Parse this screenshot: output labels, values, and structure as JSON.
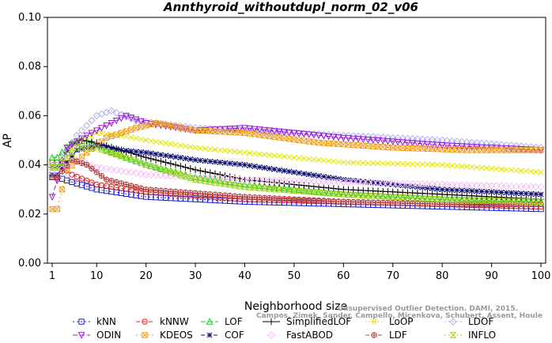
{
  "chart_data": {
    "type": "line",
    "title": "Annthyroid_withoutdupl_norm_02_v06",
    "xlabel": "Neighborhood size",
    "ylabel": "AP",
    "xlim": [
      1,
      100
    ],
    "ylim": [
      0.0,
      0.1
    ],
    "xticks": [
      "1",
      "10",
      "20",
      "30",
      "40",
      "50",
      "60",
      "70",
      "80",
      "90",
      "100"
    ],
    "yticks": [
      "0.00",
      "0.02",
      "0.04",
      "0.06",
      "0.08",
      "0.10"
    ],
    "grid": false,
    "legend_position": "bottom",
    "series": [
      {
        "name": "kNN",
        "color": "#1a1ad6",
        "marker": "square",
        "dash": "2,3",
        "points": [
          [
            2,
            0.035
          ],
          [
            5,
            0.033
          ],
          [
            10,
            0.03
          ],
          [
            20,
            0.027
          ],
          [
            40,
            0.025
          ],
          [
            60,
            0.024
          ],
          [
            80,
            0.023
          ],
          [
            100,
            0.022
          ]
        ]
      },
      {
        "name": "kNNW",
        "color": "#e0201a",
        "marker": "circle",
        "dash": "5,3",
        "points": [
          [
            2,
            0.041
          ],
          [
            5,
            0.036
          ],
          [
            10,
            0.032
          ],
          [
            20,
            0.029
          ],
          [
            40,
            0.026
          ],
          [
            60,
            0.025
          ],
          [
            80,
            0.024
          ],
          [
            100,
            0.023
          ]
        ]
      },
      {
        "name": "LOF",
        "color": "#16cc16",
        "marker": "triangle-up",
        "dash": "6,3",
        "points": [
          [
            2,
            0.043
          ],
          [
            5,
            0.049
          ],
          [
            8,
            0.05
          ],
          [
            12,
            0.046
          ],
          [
            20,
            0.04
          ],
          [
            30,
            0.035
          ],
          [
            40,
            0.032
          ],
          [
            60,
            0.028
          ],
          [
            80,
            0.026
          ],
          [
            100,
            0.025
          ]
        ]
      },
      {
        "name": "SimplifiedLOF",
        "color": "#000000",
        "marker": "plus",
        "dash": "",
        "points": [
          [
            2,
            0.039
          ],
          [
            5,
            0.048
          ],
          [
            7,
            0.05
          ],
          [
            10,
            0.049
          ],
          [
            20,
            0.043
          ],
          [
            30,
            0.038
          ],
          [
            40,
            0.034
          ],
          [
            60,
            0.03
          ],
          [
            80,
            0.028
          ],
          [
            100,
            0.026
          ]
        ]
      },
      {
        "name": "LoOP",
        "color": "#e6e600",
        "marker": "x",
        "dash": "2,2",
        "points": [
          [
            2,
            0.04
          ],
          [
            6,
            0.049
          ],
          [
            10,
            0.053
          ],
          [
            15,
            0.052
          ],
          [
            20,
            0.05
          ],
          [
            30,
            0.047
          ],
          [
            40,
            0.045
          ],
          [
            60,
            0.041
          ],
          [
            80,
            0.04
          ],
          [
            100,
            0.037
          ]
        ]
      },
      {
        "name": "LDOF",
        "color": "#b0b0f0",
        "marker": "diamond",
        "dash": "2,3",
        "points": [
          [
            2,
            0.04
          ],
          [
            6,
            0.052
          ],
          [
            10,
            0.06
          ],
          [
            13,
            0.062
          ],
          [
            18,
            0.058
          ],
          [
            30,
            0.055
          ],
          [
            40,
            0.054
          ],
          [
            60,
            0.052
          ],
          [
            70,
            0.051
          ],
          [
            80,
            0.05
          ],
          [
            100,
            0.047
          ]
        ]
      },
      {
        "name": "ODIN",
        "color": "#9a18d6",
        "marker": "triangle-down",
        "dash": "6,3",
        "points": [
          [
            1,
            0.027
          ],
          [
            4,
            0.047
          ],
          [
            8,
            0.052
          ],
          [
            12,
            0.056
          ],
          [
            16,
            0.06
          ],
          [
            20,
            0.057
          ],
          [
            30,
            0.054
          ],
          [
            40,
            0.055
          ],
          [
            60,
            0.051
          ],
          [
            80,
            0.048
          ],
          [
            100,
            0.046
          ]
        ]
      },
      {
        "name": "KDEOS",
        "color": "#f0a020",
        "marker": "square-x",
        "dash": "2,3",
        "points": [
          [
            2,
            0.022
          ],
          [
            4,
            0.038
          ],
          [
            8,
            0.045
          ],
          [
            12,
            0.051
          ],
          [
            18,
            0.055
          ],
          [
            22,
            0.057
          ],
          [
            30,
            0.054
          ],
          [
            40,
            0.053
          ],
          [
            55,
            0.049
          ],
          [
            70,
            0.047
          ],
          [
            85,
            0.046
          ],
          [
            100,
            0.046
          ]
        ]
      },
      {
        "name": "COF",
        "color": "#0a0a6e",
        "marker": "asterisk",
        "dash": "5,3",
        "points": [
          [
            2,
            0.036
          ],
          [
            6,
            0.046
          ],
          [
            10,
            0.048
          ],
          [
            15,
            0.046
          ],
          [
            20,
            0.045
          ],
          [
            30,
            0.042
          ],
          [
            40,
            0.04
          ],
          [
            50,
            0.037
          ],
          [
            60,
            0.034
          ],
          [
            80,
            0.03
          ],
          [
            100,
            0.028
          ]
        ]
      },
      {
        "name": "FastABOD",
        "color": "#f5c0f5",
        "marker": "diamond",
        "dash": "2,3",
        "points": [
          [
            2,
            0.037
          ],
          [
            6,
            0.042
          ],
          [
            10,
            0.039
          ],
          [
            20,
            0.036
          ],
          [
            40,
            0.034
          ],
          [
            60,
            0.033
          ],
          [
            80,
            0.032
          ],
          [
            100,
            0.031
          ]
        ]
      },
      {
        "name": "LDF",
        "color": "#b04040",
        "marker": "circle-plus",
        "dash": "5,3",
        "points": [
          [
            2,
            0.035
          ],
          [
            5,
            0.042
          ],
          [
            8,
            0.04
          ],
          [
            12,
            0.034
          ],
          [
            20,
            0.03
          ],
          [
            40,
            0.027
          ],
          [
            60,
            0.025
          ],
          [
            80,
            0.024
          ],
          [
            100,
            0.024
          ]
        ]
      },
      {
        "name": "INFLO",
        "color": "#a0d020",
        "marker": "hourglass",
        "dash": "2,3",
        "points": [
          [
            2,
            0.039
          ],
          [
            6,
            0.047
          ],
          [
            10,
            0.047
          ],
          [
            20,
            0.04
          ],
          [
            30,
            0.034
          ],
          [
            40,
            0.031
          ],
          [
            60,
            0.028
          ],
          [
            80,
            0.026
          ],
          [
            100,
            0.025
          ]
        ]
      }
    ],
    "legend_rows": [
      [
        "kNN",
        "kNNW",
        "LOF",
        "SimplifiedLOF",
        "LoOP",
        "LDOF"
      ],
      [
        "ODIN",
        "KDEOS",
        "COF",
        "FastABOD",
        "LDF",
        "INFLO"
      ]
    ],
    "watermark": {
      "line1": "Unsupervised Outlier Detection. DAMI, 2015.",
      "line2": "Campos, Zimek, Sander, Campello, Micenkova, Schubert, Assent, Houle"
    }
  }
}
